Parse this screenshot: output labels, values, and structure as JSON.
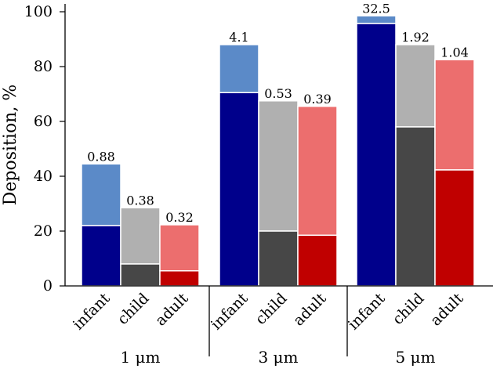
{
  "chart_data": {
    "type": "bar",
    "stacked": true,
    "ylabel": "Deposition, %",
    "ylim": [
      0,
      100
    ],
    "yticks": [
      0,
      20,
      40,
      60,
      80,
      100
    ],
    "groups": [
      {
        "label": "1 μm",
        "bars": [
          {
            "category": "infant",
            "lower": 22,
            "total": 44.5,
            "label": "0.88",
            "lower_color": "#00008b",
            "upper_color": "#5b8ac8"
          },
          {
            "category": "child",
            "lower": 8,
            "total": 28.5,
            "label": "0.38",
            "lower_color": "#474747",
            "upper_color": "#b0b0b0"
          },
          {
            "category": "adult",
            "lower": 5.5,
            "total": 22.3,
            "label": "0.32",
            "lower_color": "#c00000",
            "upper_color": "#ec6e6e"
          }
        ]
      },
      {
        "label": "3 μm",
        "bars": [
          {
            "category": "infant",
            "lower": 70.5,
            "total": 88,
            "label": "4.1",
            "lower_color": "#00008b",
            "upper_color": "#5b8ac8"
          },
          {
            "category": "child",
            "lower": 20,
            "total": 67.5,
            "label": "0.53",
            "lower_color": "#474747",
            "upper_color": "#b0b0b0"
          },
          {
            "category": "adult",
            "lower": 18.5,
            "total": 65.5,
            "label": "0.39",
            "lower_color": "#c00000",
            "upper_color": "#ec6e6e"
          }
        ]
      },
      {
        "label": "5 μm",
        "bars": [
          {
            "category": "infant",
            "lower": 95.7,
            "total": 98.5,
            "label": "32.5",
            "lower_color": "#00008b",
            "upper_color": "#5b8ac8"
          },
          {
            "category": "child",
            "lower": 58,
            "total": 88,
            "label": "1.92",
            "lower_color": "#474747",
            "upper_color": "#b0b0b0"
          },
          {
            "category": "adult",
            "lower": 42.3,
            "total": 82.5,
            "label": "1.04",
            "lower_color": "#c00000",
            "upper_color": "#ec6e6e"
          }
        ]
      }
    ]
  }
}
